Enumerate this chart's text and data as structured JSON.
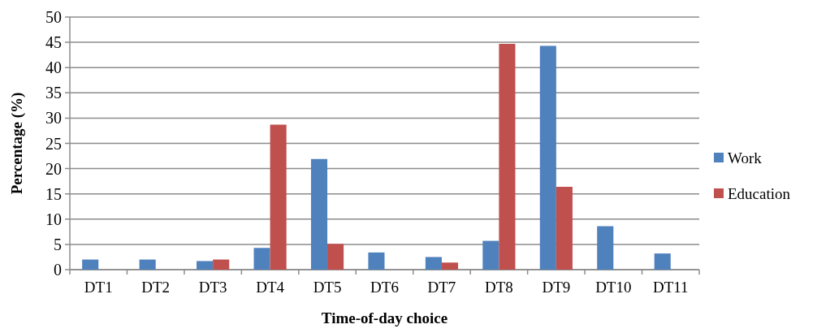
{
  "chart_data": {
    "type": "bar",
    "xlabel": "Time-of-day choice",
    "ylabel": "Percentage (%)",
    "categories": [
      "DT1",
      "DT2",
      "DT3",
      "DT4",
      "DT5",
      "DT6",
      "DT7",
      "DT8",
      "DT9",
      "DT10",
      "DT11"
    ],
    "series": [
      {
        "name": "Work",
        "color": "#4f81bd",
        "values": [
          2.0,
          2.0,
          1.7,
          4.3,
          21.9,
          3.4,
          2.5,
          5.7,
          44.3,
          8.6,
          3.2
        ]
      },
      {
        "name": "Education",
        "color": "#c0504d",
        "values": [
          0,
          0,
          2.0,
          28.7,
          5.1,
          0,
          1.4,
          44.7,
          16.4,
          0,
          0
        ]
      }
    ],
    "ylim": [
      0,
      50
    ],
    "yticks": [
      0,
      5,
      10,
      15,
      20,
      25,
      30,
      35,
      40,
      45,
      50
    ],
    "grid": "y",
    "legend": "right"
  }
}
